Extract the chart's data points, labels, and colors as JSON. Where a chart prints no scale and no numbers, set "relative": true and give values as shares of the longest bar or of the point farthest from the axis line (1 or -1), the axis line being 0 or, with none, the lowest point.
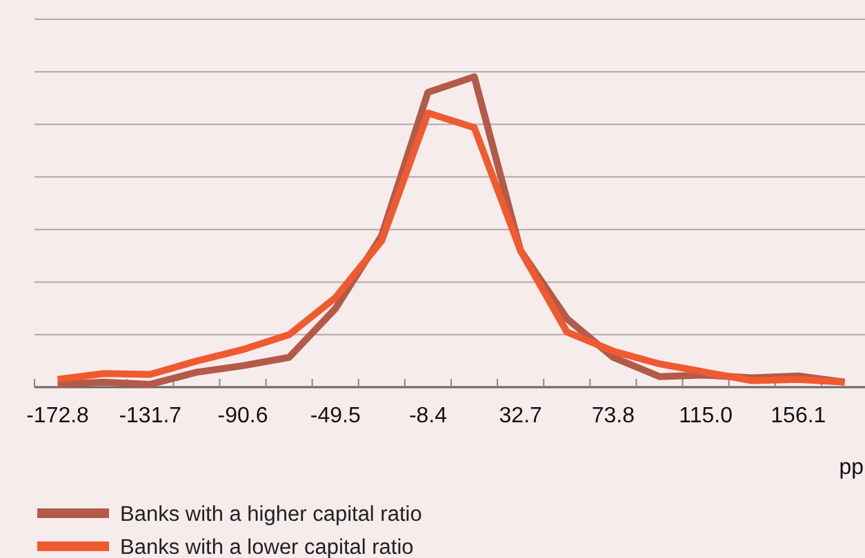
{
  "chart_data": {
    "type": "line",
    "relative": true,
    "xlabel": "pp",
    "grid": "y",
    "legend": "bottom",
    "line_style": "solid",
    "marker": "none",
    "categories": [
      "-172.8",
      null,
      "-131.7",
      null,
      "-90.6",
      null,
      "-49.5",
      null,
      "-8.4",
      null,
      "32.7",
      null,
      "73.8",
      null,
      "115.0",
      null,
      "156.1",
      null
    ],
    "series": [
      {
        "name": "Banks with a higher capital ratio",
        "color": "#b35a48",
        "values": [
          0.009,
          0.016,
          0.009,
          0.048,
          0.069,
          0.096,
          0.253,
          0.488,
          0.95,
          1,
          0.44,
          0.221,
          0.096,
          0.034,
          0.039,
          0.03,
          0.036,
          0.016
        ]
      },
      {
        "name": "Banks with a lower capital ratio",
        "color": "#f05a30",
        "values": [
          0.025,
          0.044,
          0.041,
          0.084,
          0.121,
          0.169,
          0.288,
          0.472,
          0.883,
          0.836,
          0.44,
          0.178,
          0.116,
          0.075,
          0.048,
          0.021,
          0.025,
          0.016
        ]
      }
    ]
  }
}
